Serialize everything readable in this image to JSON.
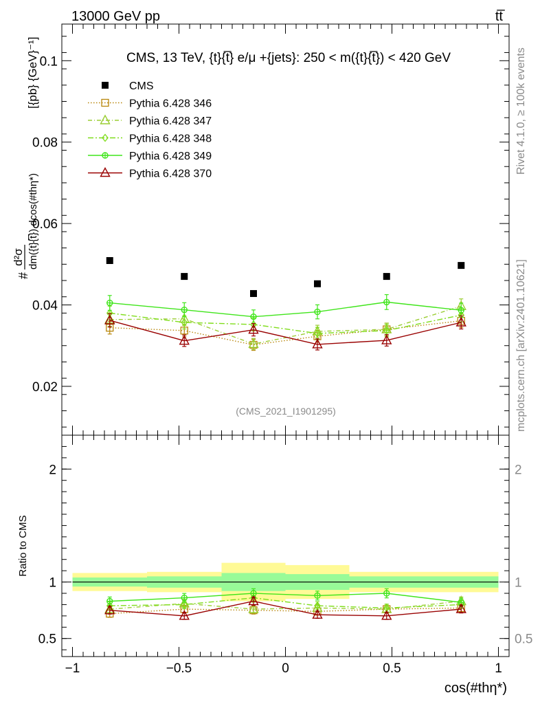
{
  "header": {
    "left": "13000 GeV pp",
    "right": "tt̅"
  },
  "side": {
    "rivet": "Rivet 4.1.0, ≥ 100k events",
    "mcplots": "mcplots.cern.ch [arXiv:2401.10621]"
  },
  "colors": {
    "data": "#000000",
    "p346": "#b8860b",
    "p347": "#9acd32",
    "p348": "#7fdd1a",
    "p349": "#3fe51a",
    "p370": "#990000",
    "band_inner": "#98fb98",
    "band_outer": "#fffa96"
  },
  "chart_data": [
    {
      "type": "scatter",
      "panel": "main",
      "title": "CMS, 13 TeV, {t}{t̅} e/μ +{jets}: 250 < m({t}{t̅}) < 420 GeV",
      "watermark": "(CMS_2021_I1901295)",
      "ylabel_parts": [
        "#",
        "d²σ",
        "dm({t}{t̅}) dcos(#thη*)",
        "[{pb} {GeV}⁻¹]"
      ],
      "ylabel": "# d²σ / dm({t}{t̅}) dcos(#thη*) [{pb} {GeV}⁻¹]",
      "xlim": [
        -1.05,
        1.05
      ],
      "ylim": [
        0.008,
        0.109
      ],
      "yticks": [
        0.02,
        0.04,
        0.06,
        0.08,
        0.1
      ],
      "ytick_labels": [
        "0.02",
        "0.04",
        "0.06",
        "0.08",
        "0.1"
      ],
      "x": [
        -0.825,
        -0.475,
        -0.15,
        0.15,
        0.475,
        0.825
      ],
      "x_edges": [
        -1,
        -0.65,
        -0.3,
        0,
        0.3,
        0.65,
        1
      ],
      "series": [
        {
          "key": "cms",
          "name": "CMS",
          "values": [
            0.0509,
            0.047,
            0.0428,
            0.0452,
            0.047,
            0.0497
          ]
        },
        {
          "key": "p346",
          "name": "Pythia 6.428 346",
          "values": [
            0.0344,
            0.0337,
            0.0302,
            0.0323,
            0.034,
            0.0361
          ]
        },
        {
          "key": "p347",
          "name": "Pythia 6.428 347",
          "values": [
            0.0364,
            0.0366,
            0.0304,
            0.0335,
            0.034,
            0.0397
          ]
        },
        {
          "key": "p348",
          "name": "Pythia 6.428 348",
          "values": [
            0.038,
            0.0357,
            0.0352,
            0.033,
            0.0337,
            0.0375
          ]
        },
        {
          "key": "p349",
          "name": "Pythia 6.428 349",
          "values": [
            0.0405,
            0.0388,
            0.0371,
            0.0383,
            0.0407,
            0.0387
          ]
        },
        {
          "key": "p370",
          "name": "Pythia 6.428 370",
          "values": [
            0.0362,
            0.0312,
            0.0339,
            0.0303,
            0.0313,
            0.0357
          ]
        }
      ]
    },
    {
      "type": "scatter",
      "panel": "ratio",
      "ylabel": "Ratio to CMS",
      "xlabel": "cos(#thη*)",
      "ylim": [
        0.34,
        2.3
      ],
      "yticks": [
        0.5,
        1,
        2
      ],
      "ytick_labels": [
        "0.5",
        "1",
        "2"
      ],
      "xticks": [
        -1,
        -0.5,
        0,
        0.5,
        1
      ],
      "xtick_labels": [
        "−1",
        "−0.5",
        "0",
        "0.5",
        "1"
      ],
      "band_inner": [
        0.04,
        0.05,
        0.08,
        0.07,
        0.05,
        0.05
      ],
      "band_outer": [
        0.08,
        0.09,
        0.17,
        0.15,
        0.09,
        0.09
      ],
      "series": [
        {
          "key": "p346",
          "name": "Pythia 6.428 346",
          "values": [
            0.72,
            0.76,
            0.75,
            0.74,
            0.76,
            0.77
          ]
        },
        {
          "key": "p347",
          "name": "Pythia 6.428 347",
          "values": [
            0.76,
            0.81,
            0.76,
            0.77,
            0.76,
            0.83
          ]
        },
        {
          "key": "p348",
          "name": "Pythia 6.428 348",
          "values": [
            0.79,
            0.8,
            0.86,
            0.79,
            0.77,
            0.8
          ]
        },
        {
          "key": "p349",
          "name": "Pythia 6.428 349",
          "values": [
            0.83,
            0.86,
            0.9,
            0.88,
            0.9,
            0.82
          ]
        },
        {
          "key": "p370",
          "name": "Pythia 6.428 370",
          "values": [
            0.75,
            0.7,
            0.83,
            0.71,
            0.7,
            0.76
          ]
        }
      ]
    }
  ]
}
